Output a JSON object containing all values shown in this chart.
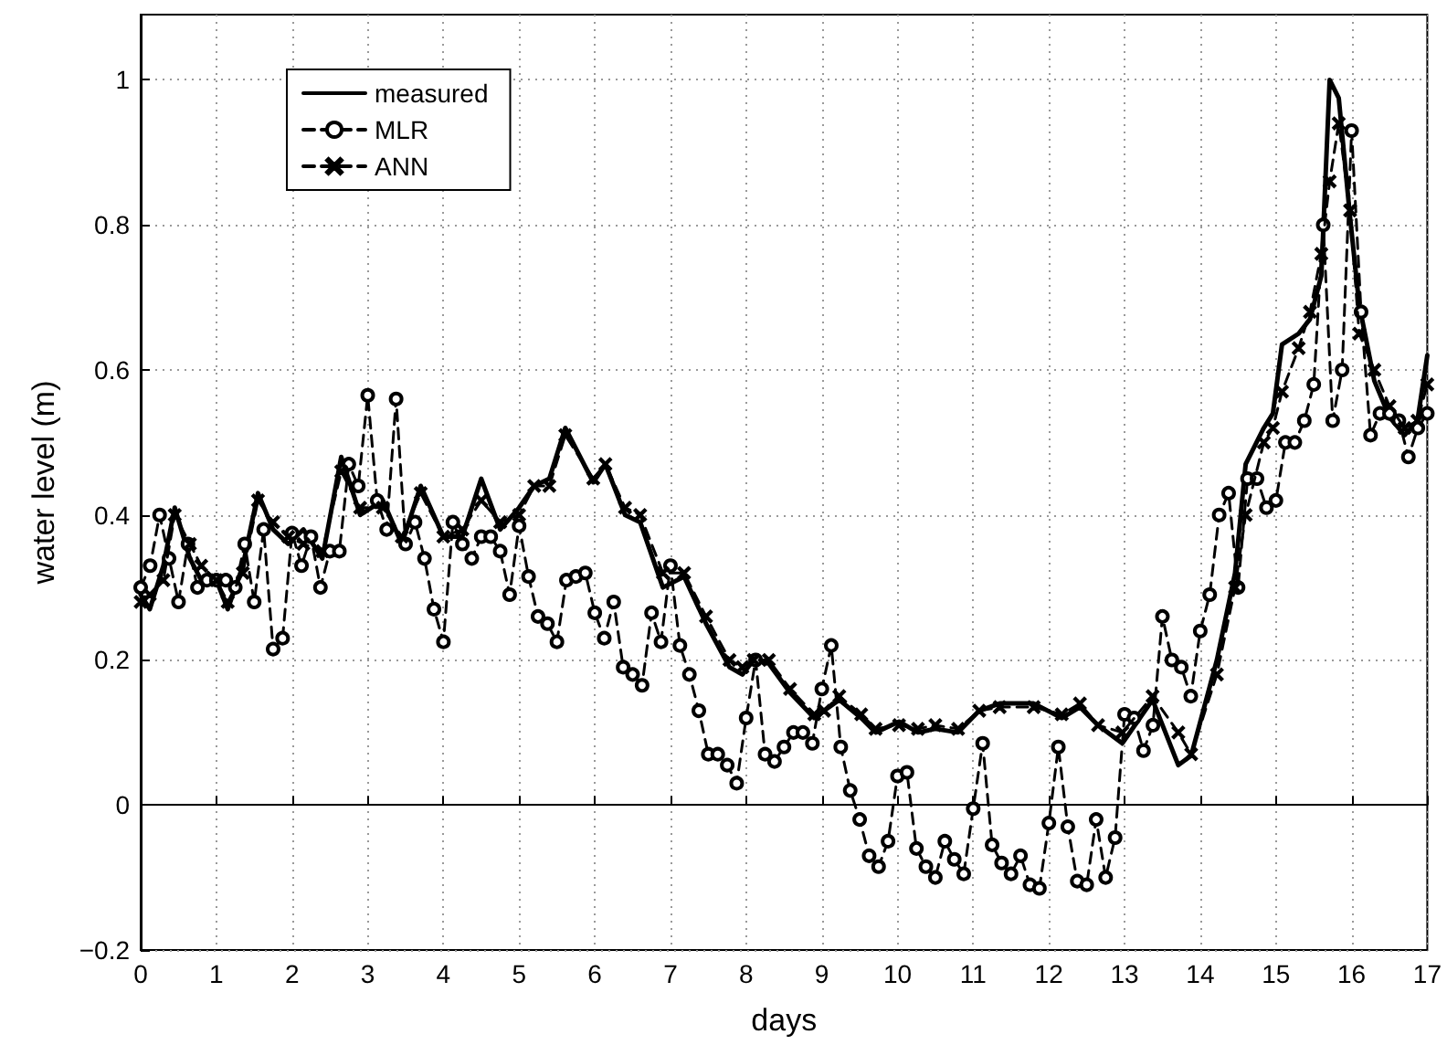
{
  "chart_data": {
    "type": "line",
    "xlabel": "days",
    "ylabel": "water level (m)",
    "xlim": [
      0,
      17
    ],
    "xticks": [
      0,
      1,
      2,
      3,
      4,
      5,
      6,
      7,
      8,
      9,
      10,
      11,
      12,
      13,
      14,
      15,
      16,
      17
    ],
    "ylim": [
      -0.2,
      1.09
    ],
    "yticks": [
      {
        "value": -0.2,
        "label": "−0.2"
      },
      0,
      0.2,
      0.4,
      0.6,
      0.8,
      1
    ],
    "grid": true,
    "legend": "top left",
    "x": [
      0,
      0.12,
      0.3,
      0.45,
      0.65,
      0.8,
      1.0,
      1.15,
      1.35,
      1.55,
      1.75,
      1.95,
      2.15,
      2.4,
      2.65,
      2.9,
      3.2,
      3.45,
      3.7,
      4.0,
      4.25,
      4.5,
      4.75,
      5.0,
      5.2,
      5.4,
      5.61,
      5.98,
      6.14,
      6.4,
      6.6,
      6.9,
      7.18,
      7.47,
      7.78,
      7.95,
      8.1,
      8.3,
      8.58,
      8.9,
      9.03,
      9.23,
      9.52,
      9.71,
      10.02,
      10.27,
      10.5,
      10.8,
      11.08,
      11.35,
      11.8,
      12.17,
      12.41,
      12.65,
      12.97,
      13.37,
      13.71,
      13.88,
      14.22,
      14.46,
      14.6,
      14.84,
      14.96,
      15.08,
      15.3,
      15.45,
      15.6,
      15.71,
      15.83,
      15.98,
      16.1,
      16.3,
      16.5,
      16.7,
      16.87,
      17.0
    ],
    "series": [
      {
        "name": "measured",
        "color": "#000000",
        "line_style": "solid",
        "marker": "none",
        "values": [
          0.29,
          0.27,
          0.33,
          0.41,
          0.34,
          0.31,
          0.31,
          0.27,
          0.33,
          0.43,
          0.38,
          0.36,
          0.38,
          0.34,
          0.48,
          0.4,
          0.42,
          0.36,
          0.44,
          0.37,
          0.37,
          0.45,
          0.38,
          0.41,
          0.44,
          0.45,
          0.52,
          0.445,
          0.47,
          0.4,
          0.39,
          0.3,
          0.315,
          0.25,
          0.19,
          0.18,
          0.2,
          0.195,
          0.155,
          0.12,
          0.13,
          0.145,
          0.12,
          0.1,
          0.115,
          0.1,
          0.105,
          0.1,
          0.13,
          0.14,
          0.14,
          0.12,
          0.135,
          0.11,
          0.085,
          0.145,
          0.055,
          0.068,
          0.2,
          0.32,
          0.47,
          0.52,
          0.54,
          0.635,
          0.65,
          0.67,
          0.73,
          1.0,
          0.975,
          0.81,
          0.69,
          0.585,
          0.535,
          0.51,
          0.53,
          0.62
        ]
      },
      {
        "name": "MLR",
        "color": "#000000",
        "line_style": "dashed",
        "marker": "circle",
        "x": [
          0,
          0.125,
          0.25,
          0.375,
          0.5,
          0.625,
          0.75,
          0.875,
          1,
          1.125,
          1.25,
          1.375,
          1.5,
          1.625,
          1.75,
          1.875,
          2,
          2.125,
          2.25,
          2.375,
          2.5,
          2.625,
          2.75,
          2.875,
          3,
          3.125,
          3.25,
          3.375,
          3.5,
          3.625,
          3.75,
          3.875,
          4,
          4.125,
          4.25,
          4.375,
          4.5,
          4.625,
          4.75,
          4.875,
          5,
          5.125,
          5.25,
          5.375,
          5.5,
          5.625,
          5.75,
          5.875,
          6,
          6.125,
          6.25,
          6.375,
          6.5,
          6.625,
          6.75,
          6.875,
          7,
          7.125,
          7.25,
          7.375,
          7.5,
          7.625,
          7.75,
          7.875,
          8,
          8.125,
          8.25,
          8.375,
          8.5,
          8.625,
          8.75,
          8.875,
          9,
          9.125,
          9.25,
          9.375,
          9.5,
          9.625,
          9.75,
          9.875,
          10,
          10.125,
          10.25,
          10.375,
          10.5,
          10.625,
          10.75,
          10.875,
          11,
          11.125,
          11.25,
          11.375,
          11.5,
          11.625,
          11.75,
          11.875,
          12,
          12.125,
          12.25,
          12.375,
          12.5,
          12.625,
          12.75,
          12.875,
          13,
          13.125,
          13.25,
          13.375,
          13.5,
          13.625,
          13.75,
          13.875,
          14,
          14.125,
          14.25,
          14.375,
          14.5,
          14.625,
          14.75,
          14.875,
          15,
          15.125,
          15.25,
          15.375,
          15.5,
          15.625,
          15.75,
          15.875,
          16,
          16.125,
          16.25,
          16.375,
          16.5,
          16.625,
          16.75,
          16.875,
          17
        ],
        "values": [
          0.3,
          0.33,
          0.4,
          0.34,
          0.28,
          0.36,
          0.3,
          0.31,
          0.31,
          0.31,
          0.3,
          0.36,
          0.28,
          0.38,
          0.215,
          0.23,
          0.375,
          0.33,
          0.37,
          0.3,
          0.35,
          0.35,
          0.47,
          0.44,
          0.565,
          0.42,
          0.38,
          0.56,
          0.36,
          0.39,
          0.34,
          0.27,
          0.225,
          0.39,
          0.36,
          0.34,
          0.37,
          0.37,
          0.35,
          0.29,
          0.385,
          0.315,
          0.26,
          0.25,
          0.225,
          0.31,
          0.315,
          0.32,
          0.265,
          0.23,
          0.28,
          0.19,
          0.18,
          0.165,
          0.265,
          0.225,
          0.33,
          0.22,
          0.18,
          0.13,
          0.07,
          0.07,
          0.055,
          0.03,
          0.12,
          0.2,
          0.07,
          0.06,
          0.08,
          0.1,
          0.1,
          0.085,
          0.16,
          0.22,
          0.08,
          0.02,
          -0.02,
          -0.07,
          -0.085,
          -0.05,
          0.04,
          0.045,
          -0.06,
          -0.085,
          -0.1,
          -0.05,
          -0.075,
          -0.095,
          -0.005,
          0.085,
          -0.055,
          -0.08,
          -0.095,
          -0.07,
          -0.11,
          -0.115,
          -0.025,
          0.08,
          -0.03,
          -0.105,
          -0.11,
          -0.02,
          -0.1,
          -0.045,
          0.125,
          0.12,
          0.075,
          0.11,
          0.26,
          0.2,
          0.19,
          0.15,
          0.24,
          0.29,
          0.4,
          0.43,
          0.3,
          0.45,
          0.45,
          0.41,
          0.42,
          0.5,
          0.5,
          0.53,
          0.58,
          0.8,
          0.53,
          0.6,
          0.93,
          0.68,
          0.51,
          0.54,
          0.54,
          0.53,
          0.48,
          0.52,
          0.54
        ]
      },
      {
        "name": "ANN",
        "color": "#000000",
        "line_style": "dashed",
        "marker": "cross",
        "values": [
          0.28,
          0.29,
          0.31,
          0.4,
          0.36,
          0.33,
          0.31,
          0.28,
          0.32,
          0.42,
          0.39,
          0.37,
          0.36,
          0.35,
          0.46,
          0.41,
          0.41,
          0.37,
          0.43,
          0.37,
          0.38,
          0.42,
          0.39,
          0.4,
          0.44,
          0.44,
          0.51,
          0.45,
          0.47,
          0.41,
          0.4,
          0.32,
          0.32,
          0.26,
          0.2,
          0.19,
          0.2,
          0.2,
          0.16,
          0.125,
          0.13,
          0.15,
          0.125,
          0.105,
          0.11,
          0.105,
          0.11,
          0.105,
          0.13,
          0.135,
          0.135,
          0.125,
          0.14,
          0.11,
          0.1,
          0.15,
          0.1,
          0.07,
          0.18,
          0.3,
          0.4,
          0.5,
          0.52,
          0.57,
          0.63,
          0.68,
          0.76,
          0.86,
          0.94,
          0.82,
          0.65,
          0.6,
          0.55,
          0.52,
          0.53,
          0.58
        ]
      }
    ]
  }
}
